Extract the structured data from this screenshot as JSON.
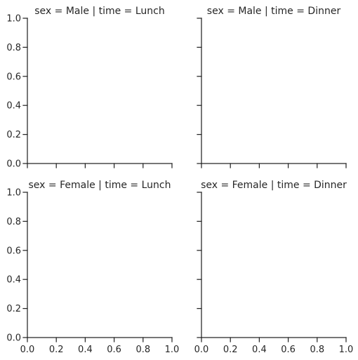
{
  "chart_data": {
    "type": "scatter",
    "layout": {
      "rows": 2,
      "cols": 2,
      "sharex": true,
      "sharey": true
    },
    "xlim": [
      0,
      1
    ],
    "ylim": [
      0,
      1
    ],
    "x_ticks": [
      0.0,
      0.2,
      0.4,
      0.6,
      0.8,
      1.0
    ],
    "y_ticks": [
      0.0,
      0.2,
      0.4,
      0.6,
      0.8,
      1.0
    ],
    "x_tick_labels": [
      "0.0",
      "0.2",
      "0.4",
      "0.6",
      "0.8",
      "1.0"
    ],
    "y_tick_labels": [
      "0.0",
      "0.2",
      "0.4",
      "0.6",
      "0.8",
      "1.0"
    ],
    "grid": false,
    "axis_color": "#262626",
    "facets": [
      {
        "title": "sex = Male | time = Lunch",
        "row": 0,
        "col": 0,
        "series": []
      },
      {
        "title": "sex = Male | time = Dinner",
        "row": 0,
        "col": 1,
        "series": []
      },
      {
        "title": "sex = Female | time = Lunch",
        "row": 1,
        "col": 0,
        "series": []
      },
      {
        "title": "sex = Female | time = Dinner",
        "row": 1,
        "col": 1,
        "series": []
      }
    ]
  }
}
